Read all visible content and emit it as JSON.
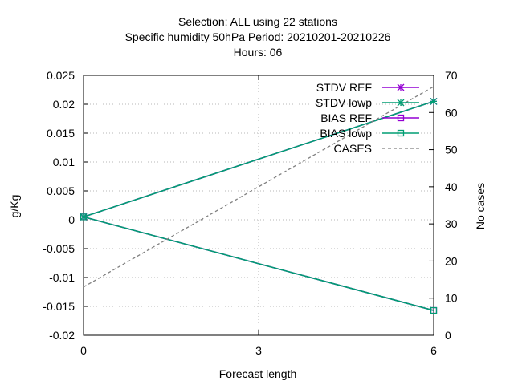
{
  "chart_data": {
    "type": "line",
    "title_lines": [
      "Selection: ALL using    22 stations",
      "Specific humidity 50hPa   Period: 20210201-20210226",
      "Hours:  06"
    ],
    "xlabel": "Forecast length",
    "ylabel": "g/Kg",
    "y2label": "No cases",
    "x_ticks": [
      "0",
      "3",
      "6"
    ],
    "xlim": [
      0,
      6
    ],
    "ylim": [
      -0.02,
      0.025
    ],
    "y_ticks": [
      "-0.02",
      "-0.015",
      "-0.01",
      "-0.005",
      "0",
      "0.005",
      "0.01",
      "0.015",
      "0.02",
      "0.025"
    ],
    "y2lim": [
      0,
      70
    ],
    "y2_ticks": [
      "0",
      "10",
      "20",
      "30",
      "40",
      "50",
      "60",
      "70"
    ],
    "legend_position": "top-right",
    "series": [
      {
        "name": "STDV REF",
        "axis": "y",
        "color": "#9400d3",
        "marker": "star",
        "dash": false,
        "x": [
          0,
          6
        ],
        "values": [
          0.0005,
          0.0205
        ]
      },
      {
        "name": "STDV lowp",
        "axis": "y",
        "color": "#009e73",
        "marker": "star",
        "dash": false,
        "x": [
          0,
          6
        ],
        "values": [
          0.0005,
          0.0205
        ]
      },
      {
        "name": "BIAS REF",
        "axis": "y",
        "color": "#9400d3",
        "marker": "square",
        "dash": false,
        "x": [
          0,
          6
        ],
        "values": [
          0.0005,
          -0.0157
        ]
      },
      {
        "name": "BIAS lowp",
        "axis": "y",
        "color": "#009e73",
        "marker": "square",
        "dash": false,
        "x": [
          0,
          6
        ],
        "values": [
          0.0005,
          -0.0157
        ]
      },
      {
        "name": "CASES",
        "axis": "y2",
        "color": "#808080",
        "marker": "none",
        "dash": true,
        "x": [
          0,
          6
        ],
        "values": [
          13,
          67
        ]
      }
    ]
  }
}
